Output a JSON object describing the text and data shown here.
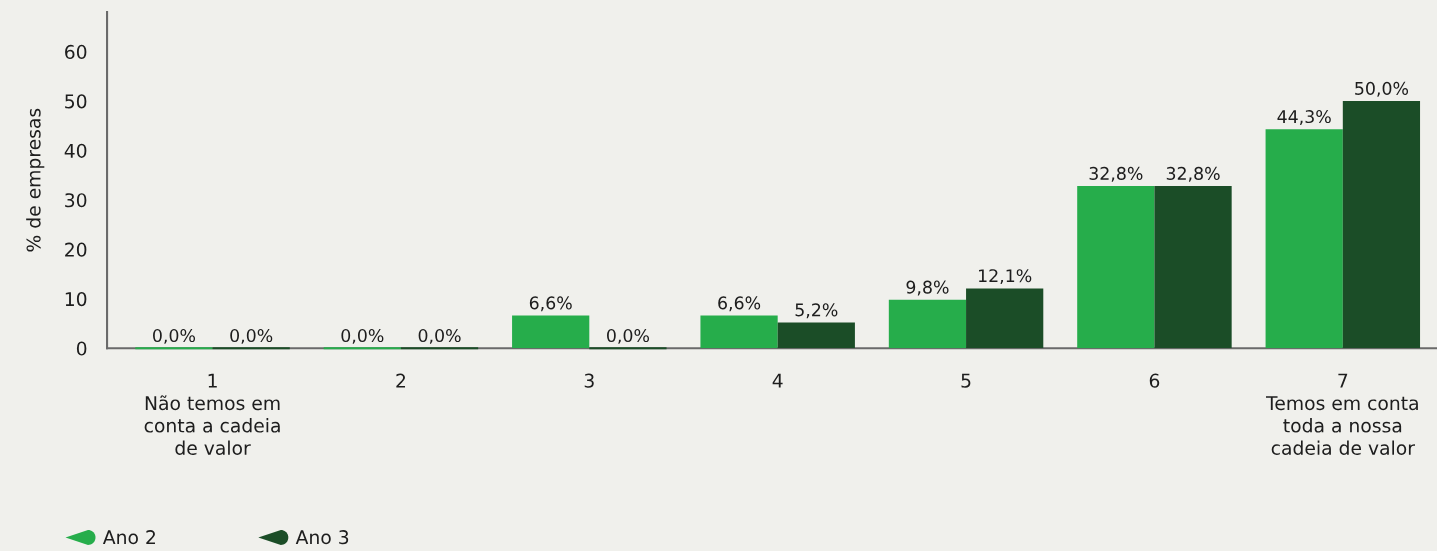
{
  "chart_data": {
    "type": "bar",
    "ylabel": "% de empresas",
    "categories": [
      "1\nNão temos em\nconta a cadeia\nde valor",
      "2",
      "3",
      "4",
      "5",
      "6",
      "7\nTemos em conta\ntoda a nossa\ncadeia de valor"
    ],
    "series": [
      {
        "name": "Ano 2",
        "color": "#26ad4b",
        "values": [
          0.0,
          0.0,
          6.6,
          6.6,
          9.8,
          32.8,
          44.3
        ],
        "value_labels": [
          "0,0%",
          "0,0%",
          "6,6%",
          "6,6%",
          "9,8%",
          "32,8%",
          "44,3%"
        ]
      },
      {
        "name": "Ano 3",
        "color": "#1b4d27",
        "values": [
          0.0,
          0.0,
          0.0,
          5.2,
          12.1,
          32.8,
          50.0
        ],
        "value_labels": [
          "0,0%",
          "0,0%",
          "0,0%",
          "5,2%",
          "12,1%",
          "32,8%",
          "50,0%"
        ]
      }
    ],
    "ylim": [
      0,
      68
    ],
    "yticks": [
      0,
      10,
      20,
      30,
      40,
      50,
      60
    ],
    "legend": "bottom left"
  }
}
